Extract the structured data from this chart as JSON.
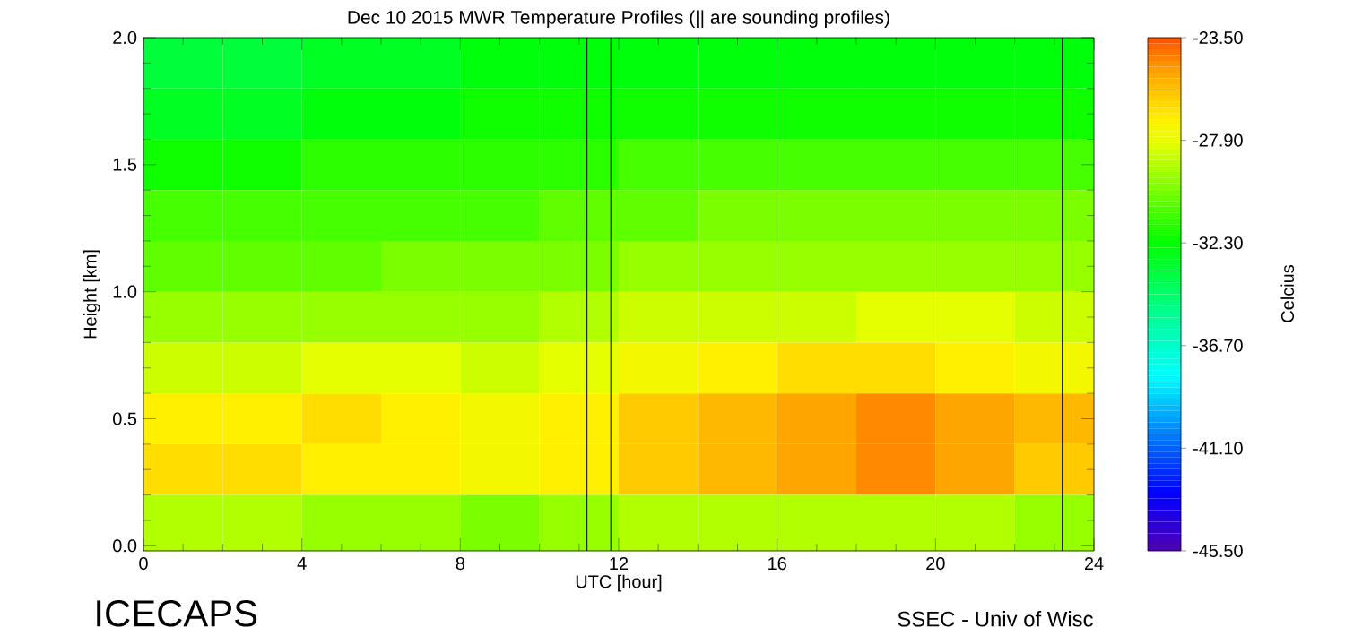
{
  "chart_data": {
    "type": "heatmap",
    "title": "Dec 10 2015 MWR Temperature Profiles (|| are sounding profiles)",
    "xlabel": "UTC [hour]",
    "ylabel": "Height [km]",
    "clabel": "Celcius",
    "annotations": [
      "ICECAPS",
      "SSEC - Univ of Wisc"
    ],
    "x": [
      1,
      3,
      5,
      7,
      9,
      11,
      13,
      15,
      17,
      19,
      21,
      23
    ],
    "y": [
      1.9,
      1.7,
      1.5,
      1.3,
      1.1,
      0.9,
      0.7,
      0.5,
      0.3,
      0.1
    ],
    "cells": [
      [
        -33.5,
        -33.5,
        -33,
        -33,
        -32.5,
        -32.5,
        -32.5,
        -32.5,
        -32.5,
        -32.5,
        -32.5,
        -32.5
      ],
      [
        -33,
        -33,
        -32.5,
        -32.5,
        -32,
        -32,
        -32,
        -32,
        -32,
        -32,
        -32,
        -32
      ],
      [
        -32,
        -32,
        -31.5,
        -31.5,
        -31.5,
        -31.5,
        -31,
        -31,
        -31,
        -31,
        -31,
        -31
      ],
      [
        -31,
        -31,
        -31,
        -31,
        -31,
        -30.5,
        -30.5,
        -30,
        -30,
        -30,
        -30,
        -30
      ],
      [
        -30.5,
        -30.5,
        -30.5,
        -30,
        -30,
        -30,
        -29.5,
        -29.5,
        -29.5,
        -29.5,
        -29.5,
        -29.5
      ],
      [
        -29.5,
        -29.5,
        -29.5,
        -29.5,
        -29.5,
        -29,
        -28.5,
        -28.5,
        -28.5,
        -28,
        -28,
        -28.5
      ],
      [
        -28.5,
        -28.5,
        -28,
        -28,
        -28.5,
        -28,
        -27.5,
        -27,
        -26.5,
        -26.5,
        -27,
        -27.5
      ],
      [
        -27,
        -27,
        -26.5,
        -27,
        -27.5,
        -27,
        -26,
        -25.5,
        -25,
        -24.5,
        -25,
        -25.5
      ],
      [
        -26.5,
        -26.5,
        -27,
        -27,
        -27.5,
        -27,
        -26,
        -25.5,
        -25,
        -24.5,
        -25,
        -26
      ],
      [
        -29,
        -29,
        -29.5,
        -29.5,
        -30,
        -29.5,
        -29,
        -29,
        -29,
        -29,
        -29,
        -29.5
      ]
    ],
    "clim": [
      -45.5,
      -23.5
    ],
    "cticks": [
      {
        "value": -45.5,
        "label": "-45.50"
      },
      {
        "value": -41.1,
        "label": "-41.10"
      },
      {
        "value": -36.7,
        "label": "-36.70"
      },
      {
        "value": -32.3,
        "label": "-32.30"
      },
      {
        "value": -27.9,
        "label": "-27.90"
      },
      {
        "value": -23.5,
        "label": "-23.50"
      }
    ],
    "xlim": [
      0,
      24
    ],
    "xticks": [
      0,
      4,
      8,
      12,
      16,
      20,
      24
    ],
    "ylim": [
      -0.02,
      2.0
    ],
    "yticks": [
      {
        "value": 0,
        "label": "0.0"
      },
      {
        "value": 0.5,
        "label": "0.5"
      },
      {
        "value": 1.0,
        "label": "1.0"
      },
      {
        "value": 1.5,
        "label": "1.5"
      },
      {
        "value": 2.0,
        "label": "2.0"
      }
    ],
    "ref_lines": [
      {
        "axis": "x",
        "value": 11.2,
        "color": "#000000"
      },
      {
        "axis": "x",
        "value": 11.8,
        "color": "#000000"
      },
      {
        "axis": "x",
        "value": 23.2,
        "color": "#000000"
      }
    ],
    "grid": false
  }
}
